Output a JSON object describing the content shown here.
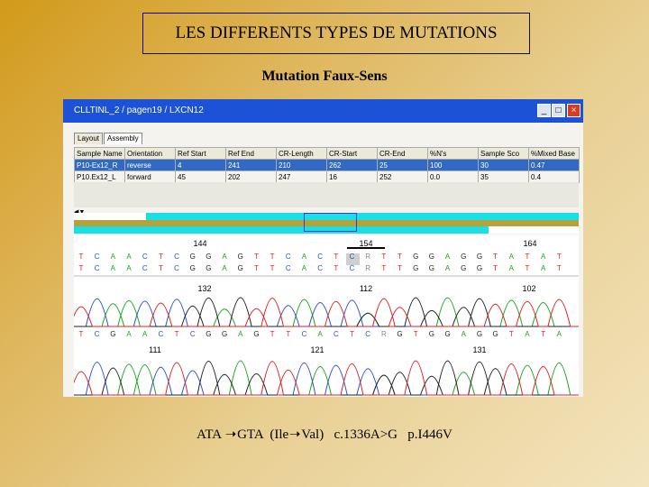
{
  "slide": {
    "title": "LES DIFFERENTS TYPES DE MUTATIONS",
    "subtitle": "Mutation Faux-Sens",
    "caption": {
      "codon_before": "ATA",
      "codon_after": "GTA",
      "aa_before": "(Ile",
      "aa_after": "Val)",
      "cdna": "c.1336A>G",
      "protein": "p.I446V"
    }
  },
  "window": {
    "title": "CLLTINL_2  /  pagen19  /  LXCN12",
    "buttons": {
      "minimize": "_",
      "maximize": "□",
      "close": "×"
    },
    "tabs": [
      "Layout",
      "Assembly"
    ],
    "table": {
      "headers": [
        "Sample Name",
        "Orientation",
        "Ref Start",
        "Ref End",
        "CR-Length",
        "CR-Start",
        "CR-End",
        "%N's",
        "Sample Sco",
        "%Mixed Base"
      ],
      "rows": [
        [
          "P10-Ex12_R",
          "reverse",
          "4",
          "241",
          "210",
          "262",
          "25",
          "100",
          "30",
          "0.47"
        ],
        [
          "P10.Ex12_L",
          "forward",
          "45",
          "202",
          "247",
          "16",
          "252",
          "0.0",
          "35",
          "0.4"
        ]
      ]
    },
    "traces": {
      "top_positions": [
        "144",
        "154",
        "164"
      ],
      "top_bases": "TCAACTCGGAGTTCACTCRTTGGAGGTATAT",
      "middle_positions": [
        "132",
        "112",
        "102"
      ],
      "bottom_bases": "TCGAACTCGGAGTTCACTCRGTGGAGGTATA",
      "bottom_positions": [
        "111",
        "121",
        "131"
      ]
    },
    "base_colors": {
      "A": "#19a61a",
      "C": "#2a4fd0",
      "G": "#222222",
      "T": "#e02020",
      "R": "#888888"
    }
  }
}
